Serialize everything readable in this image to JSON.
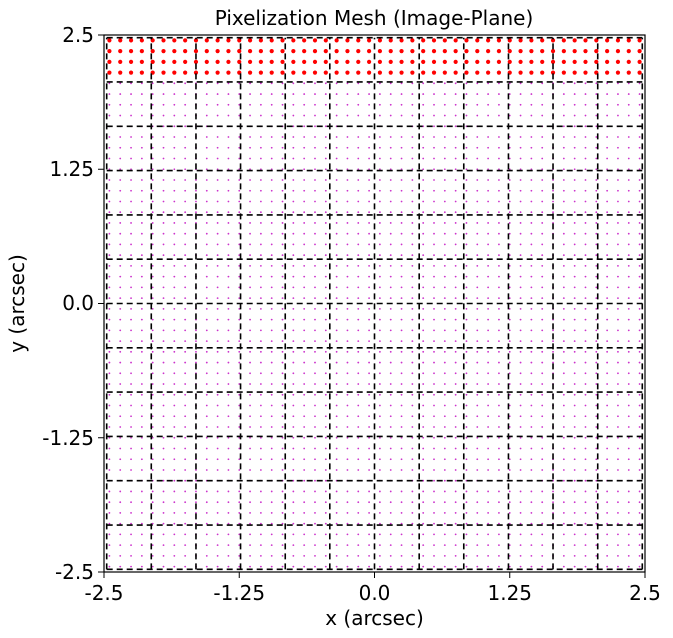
{
  "chart_data": {
    "type": "scatter",
    "title": "Pixelization Mesh (Image-Plane)",
    "xlabel": "x (arcsec)",
    "ylabel": "y (arcsec)",
    "xlim": [
      -2.5,
      2.5
    ],
    "ylim": [
      -2.5,
      2.5
    ],
    "xticks": [
      "-2.5",
      "-1.25",
      "0.0",
      "1.25",
      "2.5"
    ],
    "yticks": [
      "2.5",
      "1.25",
      "0.0",
      "-1.25",
      "-2.5"
    ],
    "grid": false,
    "mesh": {
      "style": "dashed",
      "color": "#000000",
      "x_edges": [
        -2.475,
        -2.063,
        -1.65,
        -1.238,
        -0.825,
        -0.413,
        0.0,
        0.413,
        0.825,
        1.238,
        1.65,
        2.063,
        2.475
      ],
      "y_edges": [
        2.475,
        2.063,
        1.65,
        1.238,
        0.825,
        0.413,
        0.0,
        -0.413,
        -0.825,
        -1.238,
        -1.65,
        -2.063,
        -2.475
      ]
    },
    "series": [
      {
        "marker_color": "#cc33cc",
        "x_range": [
          -2.45,
          2.45
        ],
        "y_range": [
          -2.45,
          2.45
        ],
        "step": 0.1
      },
      {
        "marker_color": "#ff0000",
        "x_range": [
          -2.45,
          2.45
        ],
        "y_range": [
          2.15,
          2.45
        ],
        "step": 0.1
      }
    ]
  }
}
